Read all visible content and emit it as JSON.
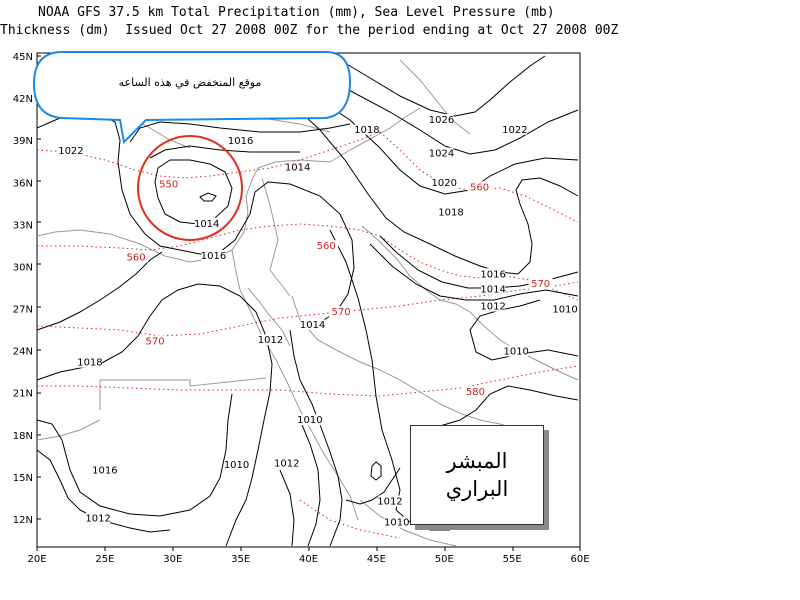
{
  "header": {
    "line1": "NOAA GFS 37.5 km Total Precipitation (mm), Sea Level Pressure (mb)",
    "line2": "Thickness (dm)  Issued Oct 27 2008 00Z for the period ending at Oct 27 2008 00Z"
  },
  "axes": {
    "lat_labels": [
      "45N",
      "42N",
      "39N",
      "36N",
      "33N",
      "30N",
      "27N",
      "24N",
      "21N",
      "18N",
      "15N",
      "12N"
    ],
    "lon_labels": [
      "20E",
      "25E",
      "30E",
      "35E",
      "40E",
      "45E",
      "50E",
      "55E",
      "60E"
    ]
  },
  "pressure_labels": [
    {
      "text": "1022",
      "lon": 22.5,
      "lat": 38.1
    },
    {
      "text": "1018",
      "lon": 44.3,
      "lat": 39.6
    },
    {
      "text": "1016",
      "lon": 35.0,
      "lat": 38.8
    },
    {
      "text": "1014",
      "lon": 39.2,
      "lat": 36.9
    },
    {
      "text": "1014",
      "lon": 32.5,
      "lat": 32.9
    },
    {
      "text": "1016",
      "lon": 33.0,
      "lat": 30.6
    },
    {
      "text": "1026",
      "lon": 49.8,
      "lat": 40.3
    },
    {
      "text": "1024",
      "lon": 49.8,
      "lat": 37.9
    },
    {
      "text": "1022",
      "lon": 55.2,
      "lat": 39.6
    },
    {
      "text": "1020",
      "lon": 50.0,
      "lat": 35.8
    },
    {
      "text": "1018",
      "lon": 50.5,
      "lat": 33.7
    },
    {
      "text": "1016",
      "lon": 53.6,
      "lat": 29.3
    },
    {
      "text": "1014",
      "lon": 53.6,
      "lat": 28.2
    },
    {
      "text": "1012",
      "lon": 53.6,
      "lat": 27.0
    },
    {
      "text": "1010",
      "lon": 58.9,
      "lat": 26.8
    },
    {
      "text": "1014",
      "lon": 40.3,
      "lat": 25.7
    },
    {
      "text": "1012",
      "lon": 37.2,
      "lat": 24.6
    },
    {
      "text": "1010",
      "lon": 55.3,
      "lat": 23.8
    },
    {
      "text": "1018",
      "lon": 23.9,
      "lat": 23.0
    },
    {
      "text": "1010",
      "lon": 40.1,
      "lat": 18.9
    },
    {
      "text": "1010",
      "lon": 34.7,
      "lat": 15.7
    },
    {
      "text": "1012",
      "lon": 38.4,
      "lat": 15.8
    },
    {
      "text": "1016",
      "lon": 25.0,
      "lat": 15.3
    },
    {
      "text": "1012",
      "lon": 46.0,
      "lat": 13.1
    },
    {
      "text": "1012",
      "lon": 24.5,
      "lat": 11.9
    },
    {
      "text": "1010",
      "lon": 46.5,
      "lat": 11.6
    }
  ],
  "thickness_labels": [
    {
      "text": "550",
      "lon": 29.7,
      "lat": 35.7
    },
    {
      "text": "560",
      "lon": 41.3,
      "lat": 31.3
    },
    {
      "text": "560",
      "lon": 27.3,
      "lat": 30.5
    },
    {
      "text": "560",
      "lon": 52.6,
      "lat": 35.5
    },
    {
      "text": "570",
      "lon": 42.4,
      "lat": 26.6
    },
    {
      "text": "570",
      "lon": 28.7,
      "lat": 24.5
    },
    {
      "text": "570",
      "lon": 57.1,
      "lat": 28.6
    },
    {
      "text": "580",
      "lon": 52.3,
      "lat": 20.9
    }
  ],
  "callout": {
    "text": "موقع المنخفض في هذه الساعه"
  },
  "stamp": {
    "line1": "المبشر",
    "line2": "البراري"
  },
  "colors": {
    "isobar": "#000000",
    "thickness": "#dd2222",
    "coastline": "#9a9a9a",
    "callout_border": "#1e88e5",
    "circle": "#e0301e"
  }
}
